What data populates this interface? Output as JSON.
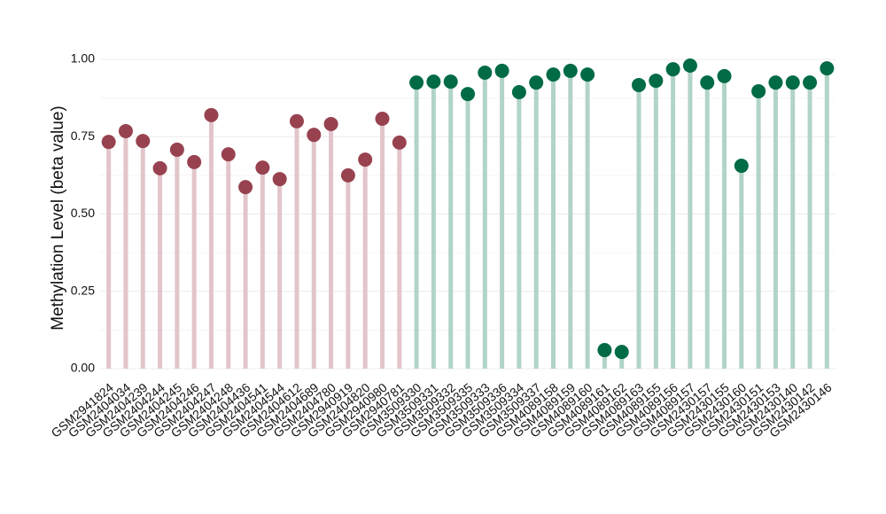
{
  "chart_data": {
    "type": "lollipop",
    "y_label": "Methylation Level (beta value)",
    "categories": [
      "GSM2941824",
      "GSM2404034",
      "GSM2404239",
      "GSM2404244",
      "GSM2404245",
      "GSM2404246",
      "GSM2404247",
      "GSM2404248",
      "GSM2404436",
      "GSM2404541",
      "GSM2404544",
      "GSM2404612",
      "GSM2404689",
      "GSM2404780",
      "GSM2940919",
      "GSM2404820",
      "GSM2940980",
      "GSM2940781",
      "GSM3509330",
      "GSM3509331",
      "GSM3509332",
      "GSM3509335",
      "GSM3509333",
      "GSM3509336",
      "GSM3509334",
      "GSM3509337",
      "GSM4089158",
      "GSM4089159",
      "GSM4089160",
      "GSM4089161",
      "GSM4089162",
      "GSM4089163",
      "GSM4089155",
      "GSM4089156",
      "GSM4089157",
      "GSM2430157",
      "GSM2430155",
      "GSM2430160",
      "GSM2430151",
      "GSM2430153",
      "GSM2430140",
      "GSM2430142",
      "GSM2430146"
    ],
    "series": [
      {
        "color": "#98424f",
        "stem_color": "#e2c5cb",
        "values": [
          0.733,
          0.768,
          0.736,
          0.648,
          0.708,
          0.668,
          0.82,
          0.693,
          0.587,
          0.65,
          0.613,
          0.8,
          0.756,
          0.791,
          0.625,
          0.676,
          0.808,
          0.731,
          null,
          null,
          null,
          null,
          null,
          null,
          null,
          null,
          null,
          null,
          null,
          null,
          null,
          null,
          null,
          null,
          null,
          null,
          null,
          null,
          null,
          null,
          null,
          null,
          null
        ]
      },
      {
        "color": "#006b45",
        "stem_color": "#b1d4c7",
        "values": [
          null,
          null,
          null,
          null,
          null,
          null,
          null,
          null,
          null,
          null,
          null,
          null,
          null,
          null,
          null,
          null,
          null,
          null,
          0.925,
          0.928,
          0.928,
          0.888,
          0.957,
          0.963,
          0.894,
          0.925,
          0.951,
          0.963,
          0.951,
          0.06,
          0.054,
          0.917,
          0.931,
          0.968,
          0.98,
          0.925,
          0.946,
          0.656,
          0.897,
          0.925,
          0.925,
          0.925,
          0.971
        ]
      }
    ],
    "ylim": [
      0,
      1
    ],
    "yticks": [
      {
        "value": 0,
        "label": "0.00"
      },
      {
        "value": 0.25,
        "label": "0.25"
      },
      {
        "value": 0.5,
        "label": "0.50"
      },
      {
        "value": 0.75,
        "label": "0.75"
      },
      {
        "value": 1,
        "label": "1.00"
      }
    ],
    "grid": true
  }
}
